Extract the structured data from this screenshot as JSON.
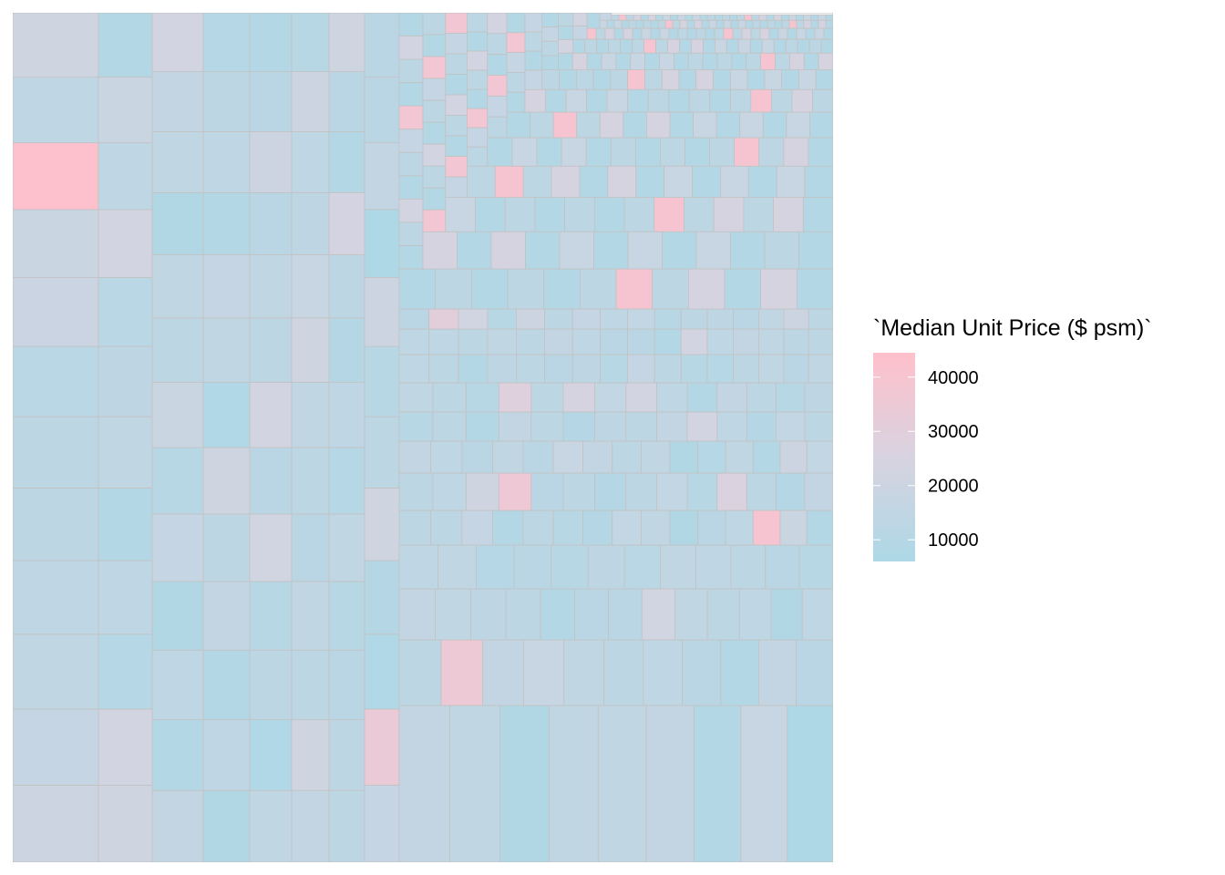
{
  "chart_data": {
    "type": "treemap",
    "title": "",
    "legend": {
      "title": "`Median Unit Price ($ psm)`",
      "placement": "right",
      "min": 6000,
      "max": 44500,
      "ticks": [
        10000,
        20000,
        30000,
        40000
      ],
      "tick_labels": [
        "10000",
        "20000",
        "30000",
        "40000"
      ]
    },
    "color_scale": {
      "low": "#add8e6",
      "mid": "#d8d3e0",
      "high": "#ffc0cb"
    },
    "border_color": "#c2c2c2",
    "ordering": "tiles in decreasing size, columns sweep right then rows sweep up",
    "columns": [
      [
        20000,
        17000,
        15000,
        14000,
        12500,
        13000,
        11500,
        19500,
        19000,
        43000,
        14000,
        21000
      ],
      [
        21000,
        23000,
        10000,
        14000,
        9000,
        15000,
        13500,
        11500,
        23000,
        14000,
        19000,
        8500
      ],
      [
        16000,
        9000,
        14000,
        8000,
        17000,
        10500,
        19000,
        13000,
        15000,
        8000,
        15000,
        16000,
        23000
      ],
      [
        8000,
        14000,
        9000,
        16000,
        13000,
        21000,
        7500,
        15000,
        17000,
        8500,
        14000,
        12500,
        10000
      ],
      [
        15000,
        7500,
        12500,
        10500,
        22000,
        12000,
        22500,
        13000,
        15000,
        12000,
        20000,
        12000,
        9000
      ],
      [
        16000,
        21000,
        13000,
        15000,
        12000,
        13000,
        15000,
        21000,
        18000,
        13500,
        14000,
        20000,
        11000
      ],
      [
        13000,
        13000,
        12000,
        11000,
        14500,
        10000,
        14000,
        9500,
        12500,
        23500,
        9000,
        12000,
        21000
      ],
      [
        17000,
        34000,
        7500,
        9500,
        21000,
        13000,
        11000,
        20000,
        7000,
        16000,
        12000,
        12000
      ]
    ],
    "rows": [
      [
        16000,
        15000,
        8000,
        15000,
        15000,
        16000,
        9000,
        18000,
        7000
      ],
      [
        12500,
        35000,
        16000,
        18000,
        14500,
        13000,
        14000,
        12000,
        9000,
        16000,
        12000
      ],
      [
        16000,
        15000,
        13500,
        13000,
        9000,
        12000,
        12000,
        22000,
        14500,
        12500,
        14000,
        8000,
        14000
      ],
      [
        14000,
        14500,
        10000,
        12000,
        11000,
        13500,
        11500,
        15000,
        14000,
        13000,
        12000,
        11000
      ],
      [
        13000,
        13000,
        17000,
        9000,
        12500,
        10500,
        9500,
        15500,
        14500,
        8000,
        12000,
        14000,
        40000,
        19000,
        8500
      ],
      [
        13000,
        14000,
        21000,
        36000,
        12000,
        12500,
        9500,
        13000,
        15500,
        11000,
        26000,
        13000,
        9500,
        16000
      ],
      [
        16000,
        14000,
        12000,
        15000,
        12000,
        18000,
        16000,
        13000,
        14500,
        8000,
        10000,
        15000,
        8500,
        20000,
        15500
      ],
      [
        10500,
        13000,
        9000,
        16000,
        12500,
        9500,
        13500,
        12500,
        16000,
        22500,
        14000,
        9500,
        15500,
        13000
      ],
      [
        15000,
        12500,
        11000,
        28000,
        13000,
        24000,
        15500,
        23000,
        14000,
        9000,
        16000,
        12500,
        11000,
        13500
      ],
      [
        14000,
        13000,
        9000,
        13500,
        13000,
        12000,
        13500,
        10500,
        17000,
        13000,
        10500,
        10000,
        13000,
        15000,
        12000,
        14500
      ],
      [
        14000,
        14000,
        12500,
        15000,
        13000,
        16000,
        14000,
        12000,
        12000,
        9000,
        23000,
        14000,
        16000,
        14500,
        12500,
        13000
      ],
      [
        12000,
        30000,
        22000,
        11000,
        20000,
        12500,
        17000,
        14000,
        15500,
        10500,
        13000,
        13500,
        12000,
        15000,
        20000,
        13000
      ]
    ]
  }
}
